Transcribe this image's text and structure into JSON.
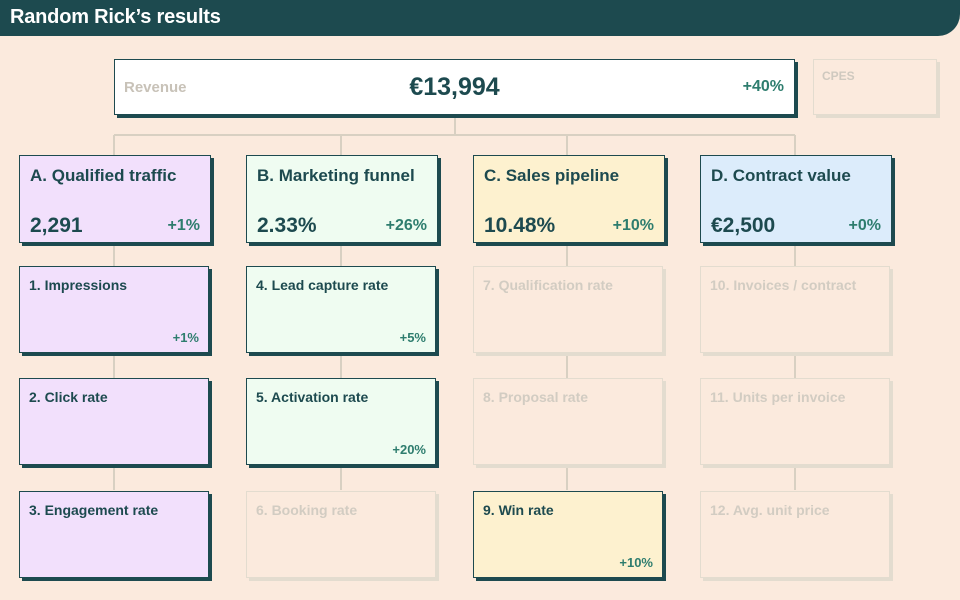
{
  "header": {
    "title": "Random Rick’s results"
  },
  "revenue": {
    "label": "Revenue",
    "value": "€13,994",
    "delta": "+40%"
  },
  "cpes": {
    "label": "CPES"
  },
  "categories": [
    {
      "name": "A. Qualified traffic",
      "value": "2,291",
      "delta": "+1%"
    },
    {
      "name": "B. Marketing funnel",
      "value": "2.33%",
      "delta": "+26%"
    },
    {
      "name": "C. Sales pipeline",
      "value": "10.48%",
      "delta": "+10%"
    },
    {
      "name": "D. Contract value",
      "value": "€2,500",
      "delta": "+0%"
    }
  ],
  "metrics": [
    {
      "name": "1. Impressions",
      "delta": "+1%"
    },
    {
      "name": "2. Click rate",
      "delta": ""
    },
    {
      "name": "3. Engagement rate",
      "delta": ""
    },
    {
      "name": "4. Lead capture rate",
      "delta": "+5%"
    },
    {
      "name": "5. Activation rate",
      "delta": "+20%"
    },
    {
      "name": "6. Booking rate",
      "delta": ""
    },
    {
      "name": "7. Qualification rate",
      "delta": ""
    },
    {
      "name": "8. Proposal rate",
      "delta": ""
    },
    {
      "name": "9. Win rate",
      "delta": "+10%"
    },
    {
      "name": "10. Invoices / contract",
      "delta": ""
    },
    {
      "name": "11. Units per invoice",
      "delta": ""
    },
    {
      "name": "12. Avg. unit price",
      "delta": ""
    }
  ]
}
